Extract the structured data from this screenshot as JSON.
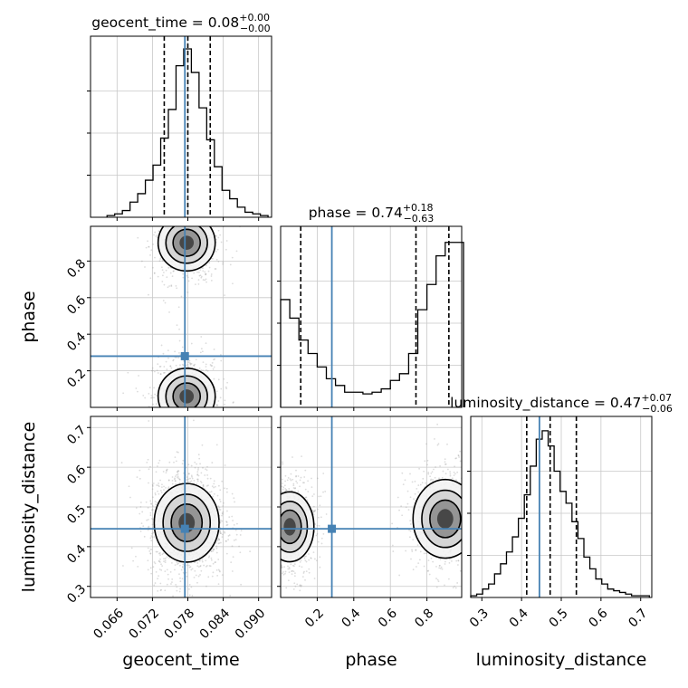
{
  "chart_data": {
    "type": "corner",
    "parameters": [
      "geocent_time",
      "phase",
      "luminosity_distance"
    ],
    "truth": {
      "geocent_time": 0.0775,
      "phase": 0.28,
      "luminosity_distance": 0.445
    },
    "colors": {
      "truth": "#4682b4",
      "hist": "#000000",
      "grid": "#c8c8c8",
      "points": "#9a9a9a"
    },
    "axes": {
      "geocent_time": {
        "range": [
          0.0615,
          0.0922
        ],
        "ticks": [
          0.066,
          0.072,
          0.078,
          0.084,
          0.09
        ],
        "tick_labels": [
          "0.066",
          "0.072",
          "0.078",
          "0.084",
          "0.090"
        ]
      },
      "phase": {
        "range": [
          0.0,
          0.99
        ],
        "ticks": [
          0.2,
          0.4,
          0.6,
          0.8
        ],
        "tick_labels": [
          "0.2",
          "0.4",
          "0.6",
          "0.8"
        ]
      },
      "luminosity_distance": {
        "range": [
          0.272,
          0.728
        ],
        "ticks": [
          0.3,
          0.4,
          0.5,
          0.6,
          0.7
        ],
        "tick_labels": [
          "0.3",
          "0.4",
          "0.5",
          "0.6",
          "0.7"
        ]
      }
    },
    "histograms": {
      "geocent_time": {
        "quantiles": [
          0.074,
          0.078,
          0.0818
        ],
        "title_main": "geocent_time = 0.08",
        "title_sup": "+0.00",
        "title_sub": "−0.00",
        "edges": [
          0.0643,
          0.0656,
          0.0669,
          0.0682,
          0.0695,
          0.0708,
          0.0721,
          0.0734,
          0.0747,
          0.076,
          0.0773,
          0.0786,
          0.0799,
          0.0812,
          0.0825,
          0.0838,
          0.0851,
          0.0864,
          0.0877,
          0.089,
          0.0903,
          0.0916
        ],
        "counts": [
          0.01,
          0.02,
          0.04,
          0.09,
          0.14,
          0.22,
          0.31,
          0.47,
          0.64,
          0.9,
          1.0,
          0.86,
          0.65,
          0.46,
          0.3,
          0.16,
          0.11,
          0.06,
          0.03,
          0.02,
          0.01
        ]
      },
      "phase": {
        "quantiles": [
          0.11,
          0.74,
          0.92
        ],
        "title_main": "phase = 0.74",
        "title_sup": "+0.18",
        "title_sub": "−0.63",
        "edges": [
          0.0,
          0.05,
          0.1,
          0.15,
          0.2,
          0.25,
          0.3,
          0.35,
          0.4,
          0.45,
          0.5,
          0.55,
          0.6,
          0.65,
          0.7,
          0.75,
          0.8,
          0.85,
          0.9,
          0.95,
          1.0
        ],
        "counts": [
          0.64,
          0.53,
          0.4,
          0.32,
          0.24,
          0.17,
          0.13,
          0.09,
          0.09,
          0.08,
          0.09,
          0.11,
          0.16,
          0.2,
          0.32,
          0.58,
          0.73,
          0.9,
          0.98,
          0.98
        ]
      },
      "luminosity_distance": {
        "quantiles": [
          0.413,
          0.472,
          0.538
        ],
        "title_main": "luminosity_distance = 0.47",
        "title_sup": "+0.07",
        "title_sub": "−0.06",
        "edges": [
          0.272,
          0.287,
          0.302,
          0.317,
          0.332,
          0.347,
          0.362,
          0.377,
          0.392,
          0.407,
          0.422,
          0.437,
          0.452,
          0.467,
          0.482,
          0.497,
          0.512,
          0.527,
          0.542,
          0.557,
          0.572,
          0.587,
          0.602,
          0.617,
          0.632,
          0.647,
          0.662,
          0.677,
          0.692,
          0.707,
          0.722
        ],
        "counts": [
          0.01,
          0.02,
          0.05,
          0.08,
          0.14,
          0.2,
          0.27,
          0.36,
          0.47,
          0.61,
          0.78,
          0.94,
          0.99,
          0.9,
          0.75,
          0.63,
          0.56,
          0.45,
          0.35,
          0.24,
          0.17,
          0.11,
          0.08,
          0.05,
          0.04,
          0.03,
          0.02,
          0.01,
          0.01,
          0.01
        ]
      }
    },
    "pairs": [
      {
        "x": "geocent_time",
        "y": "phase",
        "modes": [
          {
            "cx": 0.0778,
            "cy": 0.9,
            "sx": 0.0022,
            "sy": 0.07
          },
          {
            "cx": 0.0778,
            "cy": 0.06,
            "sx": 0.0022,
            "sy": 0.07
          }
        ]
      },
      {
        "x": "geocent_time",
        "y": "luminosity_distance",
        "modes": [
          {
            "cx": 0.0778,
            "cy": 0.46,
            "sx": 0.0025,
            "sy": 0.045
          }
        ]
      },
      {
        "x": "phase",
        "y": "luminosity_distance",
        "modes": [
          {
            "cx": 0.9,
            "cy": 0.47,
            "sx": 0.08,
            "sy": 0.045
          },
          {
            "cx": 0.05,
            "cy": 0.45,
            "sx": 0.06,
            "sy": 0.04
          }
        ]
      }
    ]
  }
}
